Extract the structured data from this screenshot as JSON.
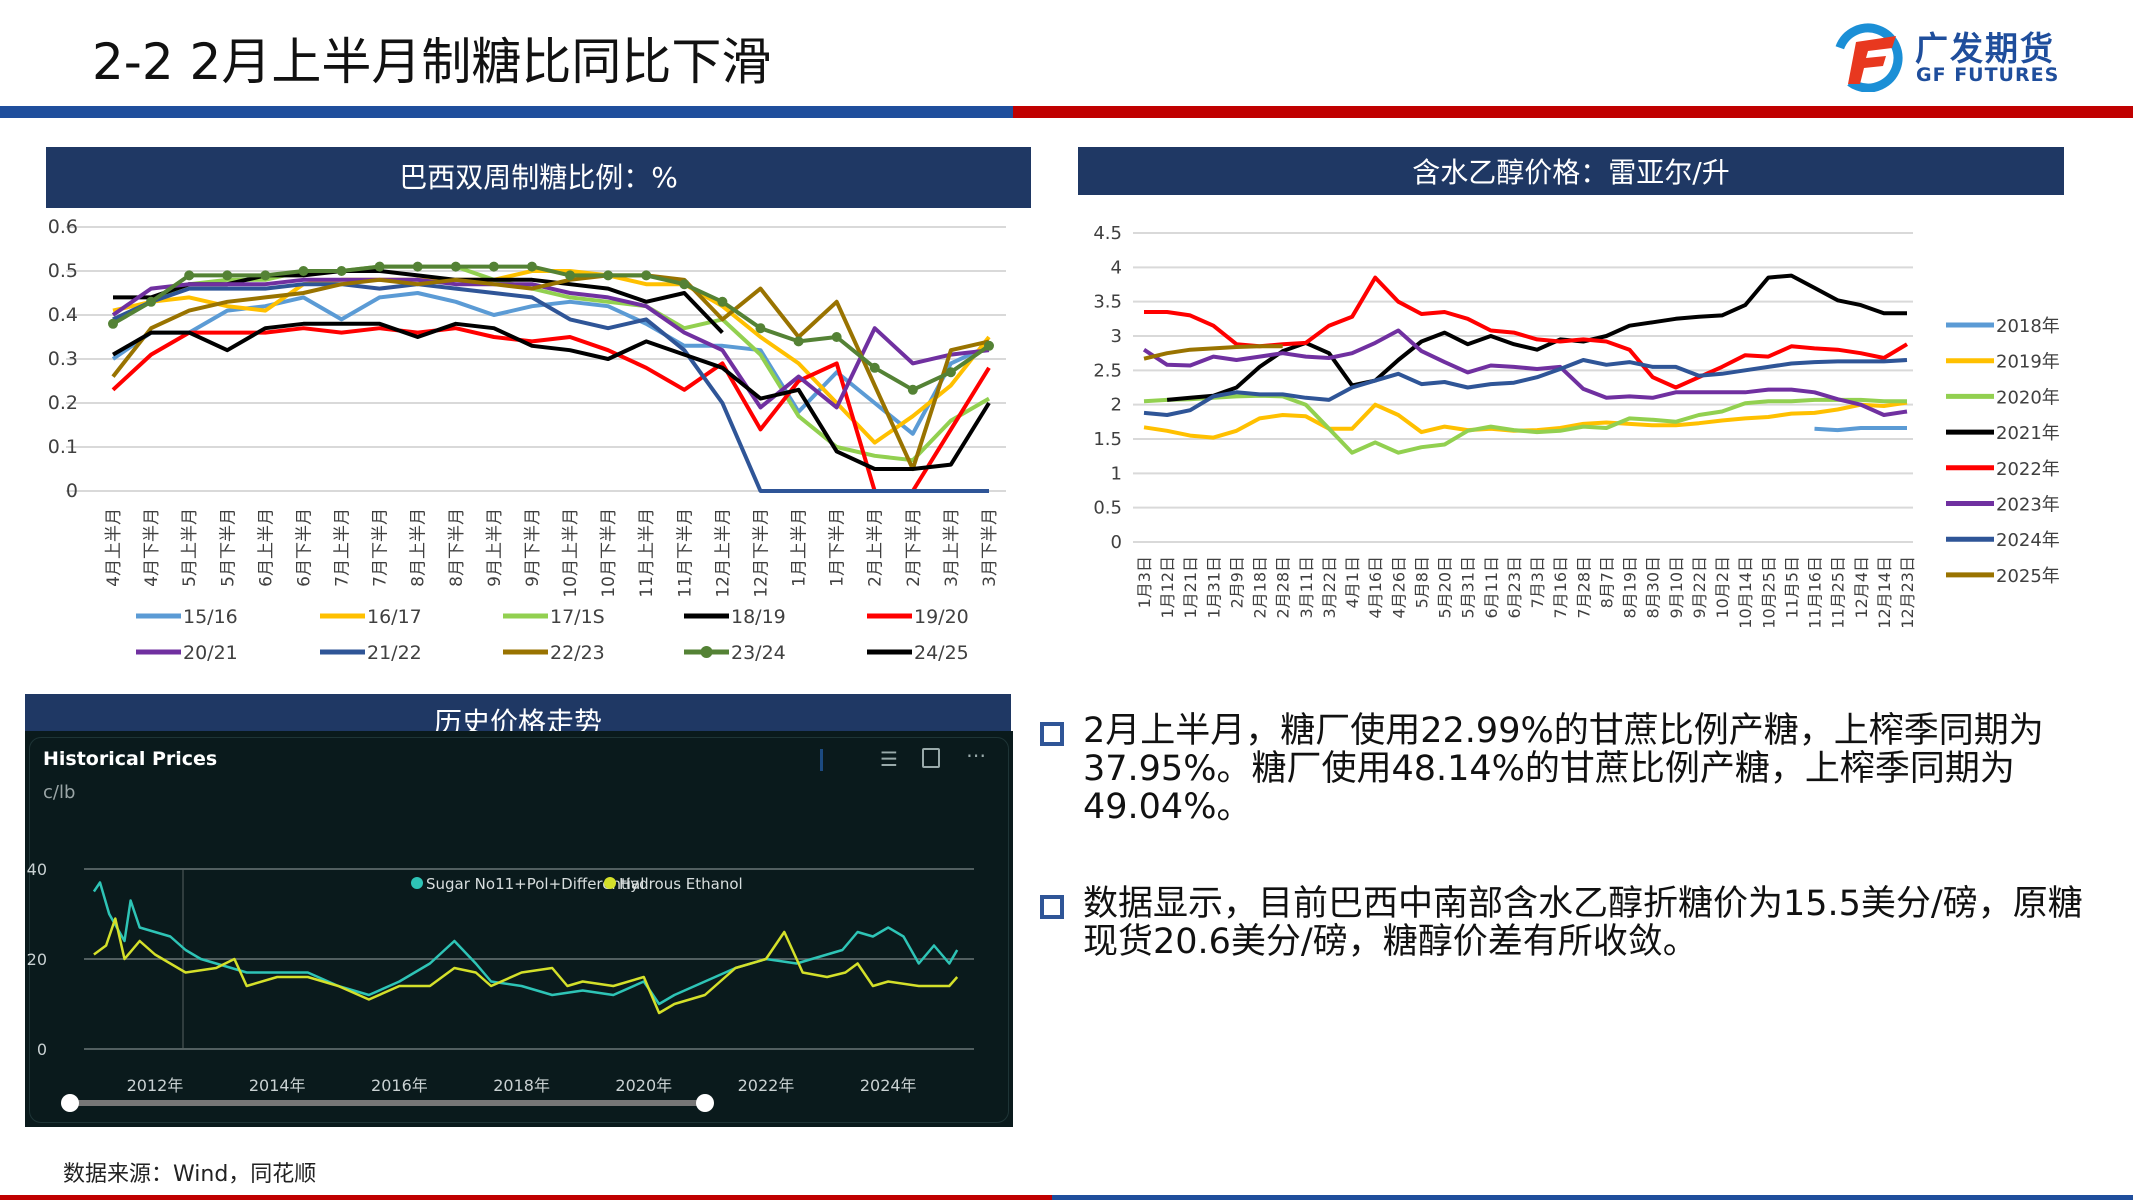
{
  "header": {
    "title": "2-2 2月上半月制糖比同比下滑",
    "logo_cn": "广发期货",
    "logo_en": "GF FUTURES"
  },
  "colors": {
    "brand_blue": "#1f4e9c",
    "brand_red": "#c00000",
    "title_bar": "#1f3864"
  },
  "chart_data": [
    {
      "type": "line",
      "title": "巴西双周制糖比例：%",
      "ylim": [
        0,
        0.6
      ],
      "yticks": [
        "0",
        "0.1",
        "0.2",
        "0.3",
        "0.4",
        "0.5",
        "0.6"
      ],
      "grid": true,
      "legend_position": "bottom",
      "categories": [
        "4月上半月",
        "4月下半月",
        "5月上半月",
        "5月下半月",
        "6月上半月",
        "6月下半月",
        "7月上半月",
        "7月下半月",
        "8月上半月",
        "8月下半月",
        "9月上半月",
        "9月下半月",
        "10月上半月",
        "10月下半月",
        "11月上半月",
        "11月下半月",
        "12月上半月",
        "12月下半月",
        "1月上半月",
        "1月下半月",
        "2月上半月",
        "2月下半月",
        "3月上半月",
        "3月下半月"
      ],
      "series": [
        {
          "name": "15/16",
          "color": "#5b9bd5",
          "values": [
            0.3,
            0.36,
            0.36,
            0.41,
            0.42,
            0.44,
            0.39,
            0.44,
            0.45,
            0.43,
            0.4,
            0.42,
            0.43,
            0.42,
            0.38,
            0.33,
            0.33,
            0.32,
            0.18,
            0.27,
            0.2,
            0.13,
            0.29,
            0.33
          ]
        },
        {
          "name": "16/17",
          "color": "#ffc000",
          "values": [
            0.41,
            0.43,
            0.44,
            0.42,
            0.41,
            0.47,
            0.48,
            0.48,
            0.48,
            0.48,
            0.48,
            0.5,
            0.5,
            0.49,
            0.47,
            0.47,
            0.42,
            0.35,
            0.29,
            0.2,
            0.11,
            0.17,
            0.24,
            0.35
          ]
        },
        {
          "name": "17/1S",
          "color": "#92d050",
          "values": [
            0.39,
            0.43,
            0.47,
            0.48,
            0.48,
            0.5,
            0.5,
            0.51,
            0.51,
            0.51,
            0.48,
            0.46,
            0.44,
            0.43,
            0.42,
            0.37,
            0.39,
            0.31,
            0.17,
            0.1,
            0.08,
            0.07,
            0.16,
            0.21
          ]
        },
        {
          "name": "18/19",
          "color": "#000000",
          "values": [
            0.44,
            0.44,
            0.47,
            0.47,
            0.49,
            0.49,
            0.5,
            0.5,
            0.49,
            0.48,
            0.48,
            0.48,
            0.47,
            0.46,
            0.43,
            0.45,
            0.36,
            null,
            null,
            null,
            null,
            null,
            null,
            null
          ]
        },
        {
          "name": "19/20",
          "color": "#ff0000",
          "values": [
            0.23,
            0.31,
            0.36,
            0.36,
            0.36,
            0.37,
            0.36,
            0.37,
            0.36,
            0.37,
            0.35,
            0.34,
            0.35,
            0.32,
            0.28,
            0.23,
            0.29,
            0.14,
            0.25,
            0.29,
            0.0,
            0.0,
            0.14,
            0.28
          ]
        },
        {
          "name": "20/21",
          "color": "#7030a0",
          "values": [
            0.4,
            0.46,
            0.47,
            0.47,
            0.47,
            0.48,
            0.48,
            0.48,
            0.48,
            0.47,
            0.47,
            0.47,
            0.45,
            0.44,
            0.42,
            0.36,
            0.32,
            0.19,
            0.26,
            0.19,
            0.37,
            0.29,
            0.31,
            0.32
          ]
        },
        {
          "name": "21/22",
          "color": "#2f5597",
          "values": [
            0.39,
            0.43,
            0.46,
            0.46,
            0.46,
            0.47,
            0.47,
            0.46,
            0.47,
            0.46,
            0.45,
            0.44,
            0.39,
            0.37,
            0.39,
            0.32,
            0.2,
            0,
            0,
            0,
            0,
            0,
            0,
            0
          ]
        },
        {
          "name": "22/23",
          "color": "#997300",
          "values": [
            0.26,
            0.37,
            0.41,
            0.43,
            0.44,
            0.45,
            0.47,
            0.48,
            0.47,
            0.48,
            0.47,
            0.46,
            0.48,
            0.49,
            0.49,
            0.48,
            0.39,
            0.46,
            0.35,
            0.43,
            0.24,
            0.05,
            0.32,
            0.34
          ]
        },
        {
          "name": "23/24",
          "color": "#548235",
          "markers": true,
          "values": [
            0.38,
            0.43,
            0.49,
            0.49,
            0.49,
            0.5,
            0.5,
            0.51,
            0.51,
            0.51,
            0.51,
            0.51,
            0.49,
            0.49,
            0.49,
            0.47,
            0.43,
            0.37,
            0.34,
            0.35,
            0.28,
            0.23,
            0.27,
            0.33
          ]
        },
        {
          "name": "24/25",
          "color": "#000000",
          "values": [
            0.31,
            0.36,
            0.36,
            0.32,
            0.37,
            0.38,
            0.38,
            0.38,
            0.35,
            0.38,
            0.37,
            0.33,
            0.32,
            0.3,
            0.34,
            0.31,
            0.28,
            0.21,
            0.23,
            0.09,
            0.05,
            0.05,
            0.06,
            0.2
          ]
        }
      ]
    },
    {
      "type": "line",
      "title": "含水乙醇价格：雷亚尔/升",
      "ylim": [
        0,
        4.5
      ],
      "yticks": [
        "0",
        "0.5",
        "1",
        "1.5",
        "2",
        "2.5",
        "3",
        "3.5",
        "4",
        "4.5"
      ],
      "grid": true,
      "legend_position": "right",
      "categories": [
        "1月3日",
        "1月12日",
        "1月21日",
        "1月31日",
        "2月9日",
        "2月18日",
        "2月28日",
        "3月11日",
        "3月22日",
        "4月1日",
        "4月16日",
        "4月26日",
        "5月8日",
        "5月20日",
        "5月31日",
        "6月11日",
        "6月23日",
        "7月3日",
        "7月16日",
        "7月28日",
        "8月7日",
        "8月19日",
        "8月30日",
        "9月10日",
        "9月22日",
        "10月2日",
        "10月14日",
        "10月25日",
        "11月5日",
        "11月16日",
        "11月25日",
        "12月4日",
        "12月14日",
        "12月23日"
      ],
      "series": [
        {
          "name": "2018年",
          "color": "#5b9bd5",
          "values": [
            null,
            null,
            null,
            null,
            null,
            null,
            null,
            null,
            null,
            null,
            null,
            null,
            null,
            null,
            null,
            null,
            null,
            null,
            null,
            null,
            null,
            null,
            null,
            null,
            null,
            null,
            null,
            null,
            null,
            1.65,
            1.63,
            1.66,
            1.66,
            1.66
          ]
        },
        {
          "name": "2019年",
          "color": "#ffc000",
          "values": [
            1.67,
            1.62,
            1.55,
            1.52,
            1.62,
            1.8,
            1.85,
            1.83,
            1.65,
            1.65,
            2.0,
            1.85,
            1.6,
            1.68,
            1.63,
            1.65,
            1.62,
            1.63,
            1.66,
            1.72,
            1.74,
            1.72,
            1.7,
            1.7,
            1.73,
            1.77,
            1.8,
            1.82,
            1.87,
            1.88,
            1.93,
            2.0,
            1.98,
            2.03
          ]
        },
        {
          "name": "2020年",
          "color": "#92d050",
          "values": [
            2.05,
            2.07,
            2.08,
            2.1,
            2.12,
            2.13,
            2.12,
            2.0,
            1.65,
            1.3,
            1.45,
            1.3,
            1.38,
            1.42,
            1.62,
            1.68,
            1.63,
            1.6,
            1.62,
            1.68,
            1.66,
            1.8,
            1.78,
            1.75,
            1.85,
            1.9,
            2.02,
            2.05,
            2.05,
            2.07,
            2.07,
            2.07,
            2.05,
            2.05
          ]
        },
        {
          "name": "2021年",
          "color": "#000000",
          "values": [
            null,
            2.07,
            2.1,
            2.13,
            2.25,
            2.55,
            2.78,
            2.9,
            2.75,
            2.28,
            2.35,
            2.65,
            2.92,
            3.05,
            2.88,
            3.0,
            2.88,
            2.8,
            2.95,
            2.92,
            3.0,
            3.15,
            3.2,
            3.25,
            3.28,
            3.3,
            3.45,
            3.85,
            3.88,
            3.7,
            3.52,
            3.45,
            3.33,
            3.33
          ]
        },
        {
          "name": "2022年",
          "color": "#ff0000",
          "values": [
            3.35,
            3.35,
            3.3,
            3.15,
            2.88,
            2.85,
            2.88,
            2.9,
            3.15,
            3.28,
            3.85,
            3.5,
            3.32,
            3.35,
            3.25,
            3.08,
            3.05,
            2.95,
            2.92,
            2.95,
            2.92,
            2.8,
            2.4,
            2.25,
            2.4,
            2.55,
            2.72,
            2.7,
            2.85,
            2.82,
            2.8,
            2.75,
            2.68,
            2.88
          ]
        },
        {
          "name": "2023年",
          "color": "#7030a0",
          "values": [
            2.8,
            2.58,
            2.57,
            2.7,
            2.65,
            2.7,
            2.75,
            2.7,
            2.68,
            2.75,
            2.9,
            3.08,
            2.78,
            2.62,
            2.47,
            2.57,
            2.55,
            2.52,
            2.55,
            2.23,
            2.1,
            2.12,
            2.1,
            2.18,
            2.18,
            2.18,
            2.18,
            2.22,
            2.22,
            2.18,
            2.08,
            2.0,
            1.85,
            1.9
          ]
        },
        {
          "name": "2024年",
          "color": "#2f5597",
          "values": [
            1.88,
            1.85,
            1.92,
            2.12,
            2.18,
            2.15,
            2.15,
            2.1,
            2.07,
            2.25,
            2.35,
            2.45,
            2.3,
            2.33,
            2.25,
            2.3,
            2.32,
            2.4,
            2.52,
            2.65,
            2.58,
            2.62,
            2.55,
            2.55,
            2.42,
            2.45,
            2.5,
            2.55,
            2.6,
            2.62,
            2.63,
            2.63,
            2.63,
            2.65
          ]
        },
        {
          "name": "2025年",
          "color": "#997300",
          "values": [
            2.67,
            2.75,
            2.8,
            2.82,
            2.84,
            2.85,
            2.85,
            null,
            null,
            null,
            null,
            null,
            null,
            null,
            null,
            null,
            null,
            null,
            null,
            null,
            null,
            null,
            null,
            null,
            null,
            null,
            null,
            null,
            null,
            null,
            null,
            null,
            null,
            null
          ]
        }
      ]
    },
    {
      "type": "line",
      "panel_title": "历史价格走势",
      "title": "Historical Prices",
      "ylabel": "c/lb",
      "ylim": [
        0,
        40
      ],
      "yticks": [
        "0",
        "20",
        "40"
      ],
      "xticks": [
        "2012年",
        "2014年",
        "2016年",
        "2018年",
        "2020年",
        "2022年",
        "2024年"
      ],
      "legend_position": "top-right",
      "series": [
        {
          "name": "Sugar No11+Pol+Differential",
          "color": "#2ec4b6",
          "x": [
            2011.0,
            2011.1,
            2011.25,
            2011.5,
            2011.6,
            2011.75,
            2012.0,
            2012.25,
            2012.5,
            2012.75,
            2013.0,
            2013.5,
            2014.0,
            2014.5,
            2015.0,
            2015.5,
            2016.0,
            2016.5,
            2016.9,
            2017.25,
            2017.5,
            2018.0,
            2018.5,
            2019.0,
            2019.5,
            2020.0,
            2020.25,
            2020.5,
            2021.0,
            2021.5,
            2022.0,
            2022.5,
            2023.0,
            2023.25,
            2023.5,
            2023.75,
            2024.0,
            2024.25,
            2024.5,
            2024.75,
            2025.0,
            2025.13
          ],
          "y": [
            35,
            37,
            30,
            24,
            33,
            27,
            26,
            25,
            22,
            20,
            19,
            17,
            17,
            17,
            14,
            12,
            15,
            19,
            24,
            19,
            15,
            14,
            12,
            13,
            12,
            15,
            10,
            12,
            15,
            18,
            20,
            19,
            21,
            22,
            26,
            25,
            27,
            25,
            19,
            23,
            19,
            22
          ]
        },
        {
          "name": "Hydrous Ethanol",
          "color": "#d4e02a",
          "x": [
            2011.0,
            2011.2,
            2011.35,
            2011.5,
            2011.75,
            2012.0,
            2012.5,
            2013.0,
            2013.3,
            2013.5,
            2014.0,
            2014.5,
            2015.0,
            2015.5,
            2016.0,
            2016.5,
            2016.9,
            2017.25,
            2017.5,
            2018.0,
            2018.5,
            2018.75,
            2019.0,
            2019.5,
            2020.0,
            2020.25,
            2020.5,
            2021.0,
            2021.5,
            2022.0,
            2022.3,
            2022.6,
            2023.0,
            2023.3,
            2023.5,
            2023.75,
            2024.0,
            2024.5,
            2025.0,
            2025.13
          ],
          "y": [
            21,
            23,
            29,
            20,
            24,
            21,
            17,
            18,
            20,
            14,
            16,
            16,
            14,
            11,
            14,
            14,
            18,
            17,
            14,
            17,
            18,
            14,
            15,
            14,
            16,
            8,
            10,
            12,
            18,
            20,
            26,
            17,
            16,
            17,
            19,
            14,
            15,
            14,
            14,
            16
          ]
        }
      ]
    }
  ],
  "bullets": [
    "2月上半月，糖厂使用22.99%的甘蔗比例产糖，上榨季同期为37.95%。糖厂使用48.14%的甘蔗比例产糖，上榨季同期为49.04%。",
    "数据显示，目前巴西中南部含水乙醇折糖价为15.5美分/磅，原糖现货20.6美分/磅，糖醇价差有所收敛。"
  ],
  "source": "数据来源：Wind，同花顺"
}
